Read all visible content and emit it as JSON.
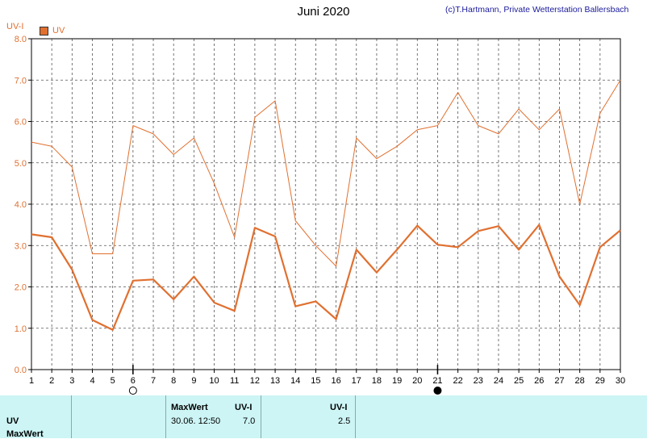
{
  "title": "Juni 2020",
  "credit": "(c)T.Hartmann, Private Wetterstation Ballersbach",
  "colors": {
    "series": "#e07030",
    "grid": "#555555",
    "panel": "#cdf5f5",
    "credit": "#1a1a9a"
  },
  "chart_data": {
    "type": "line",
    "ylabel": "UV-I",
    "ylim": [
      0,
      8
    ],
    "yticks": [
      "0.0",
      "1.0",
      "2.0",
      "3.0",
      "4.0",
      "5.0",
      "6.0",
      "7.0",
      "8.0"
    ],
    "x": [
      1,
      2,
      3,
      4,
      5,
      6,
      7,
      8,
      9,
      10,
      11,
      12,
      13,
      14,
      15,
      16,
      17,
      18,
      19,
      20,
      21,
      22,
      23,
      24,
      25,
      26,
      27,
      28,
      29,
      30
    ],
    "series": [
      {
        "name": "UV",
        "role": "max",
        "values": [
          5.5,
          5.4,
          4.9,
          2.8,
          2.8,
          5.9,
          5.7,
          5.2,
          5.6,
          4.5,
          3.2,
          6.1,
          6.5,
          3.6,
          3.0,
          2.5,
          5.6,
          5.1,
          5.4,
          5.8,
          5.9,
          6.7,
          5.9,
          5.7,
          6.3,
          5.8,
          6.3,
          4.0,
          6.2,
          7.0
        ]
      },
      {
        "role": "mean",
        "values": [
          3.27,
          3.2,
          2.42,
          1.2,
          0.96,
          2.15,
          2.18,
          1.7,
          2.25,
          1.62,
          1.42,
          3.43,
          3.22,
          1.53,
          1.65,
          1.22,
          2.9,
          2.35,
          2.9,
          3.48,
          3.02,
          2.96,
          3.35,
          3.47,
          2.9,
          3.5,
          2.25,
          1.56,
          2.96,
          3.37
        ]
      }
    ],
    "grid": true,
    "legend": "top-left",
    "moon_markers": [
      {
        "day": 6,
        "phase": "full"
      },
      {
        "day": 21,
        "phase": "new"
      }
    ]
  },
  "panel": {
    "row_label_1": "UV",
    "row_label_2": "MaxWert",
    "max_header": "MaxWert",
    "unit_header_1": "UV-I",
    "max_datetime": "30.06.  12:50",
    "max_value": "7.0",
    "unit_header_2": "UV-I",
    "mean_value": "2.5"
  }
}
